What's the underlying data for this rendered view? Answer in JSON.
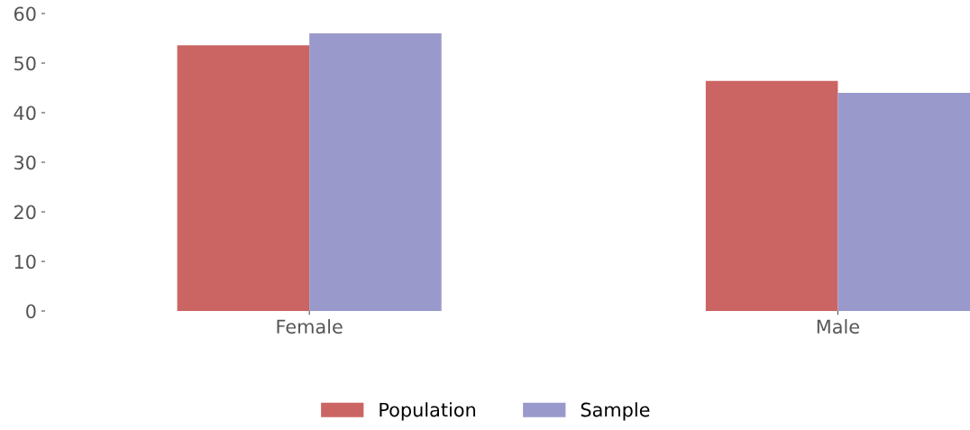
{
  "chart_data": {
    "type": "bar",
    "categories": [
      "Female",
      "Male"
    ],
    "series": [
      {
        "name": "Population",
        "color": "#cb6563",
        "values": [
          53.6,
          46.4
        ]
      },
      {
        "name": "Sample",
        "color": "#9999cb",
        "values": [
          56.0,
          44.0
        ]
      }
    ],
    "ylim": [
      0,
      60
    ],
    "yticks": [
      0,
      10,
      20,
      30,
      40,
      50,
      60
    ],
    "grid": false,
    "legend": "bottom"
  }
}
